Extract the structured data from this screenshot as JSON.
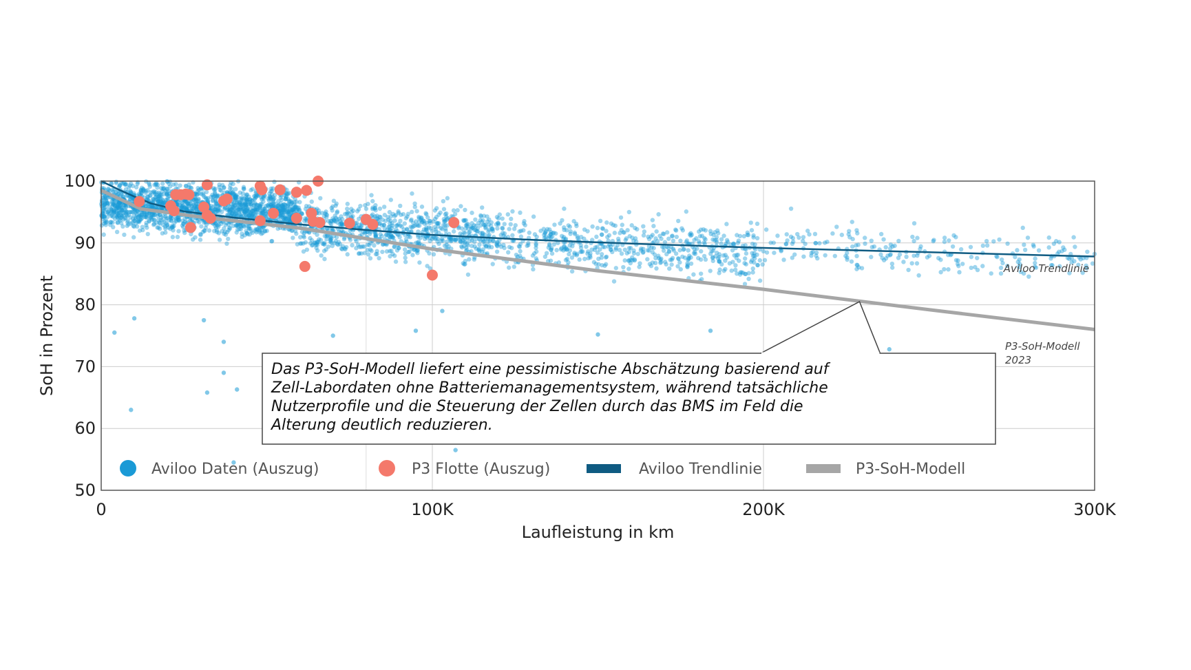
{
  "chart_data": {
    "type": "scatter",
    "xlabel": "Laufleistung in km",
    "ylabel": "SoH in Prozent",
    "xlim": [
      0,
      300000
    ],
    "ylim": [
      50,
      100
    ],
    "x_ticks": [
      0,
      100000,
      200000,
      300000
    ],
    "x_tick_labels": [
      "0",
      "100K",
      "200K",
      "300K"
    ],
    "y_ticks": [
      50,
      60,
      70,
      80,
      90,
      100
    ],
    "y_tick_labels": [
      "50",
      "60",
      "70",
      "80",
      "90",
      "100"
    ],
    "grid": true,
    "legend_position": "bottom-inside",
    "legend": [
      {
        "label": "Aviloo Daten (Auszug)",
        "marker": "circle",
        "color": "#1a9ad6"
      },
      {
        "label": "P3 Flotte (Auszug)",
        "marker": "circle",
        "color": "#f4796b"
      },
      {
        "label": "Aviloo Trendlinie",
        "marker": "bar",
        "color": "#0f5b82"
      },
      {
        "label": "P3-SoH-Modell",
        "marker": "bar",
        "color": "#a6a6a6"
      }
    ],
    "series": [
      {
        "name": "Aviloo Daten (Auszug)",
        "kind": "scatter",
        "color": "#1a9ad6",
        "density_regions": [
          {
            "x_range": [
              0,
              60000
            ],
            "y_center": 95.5,
            "y_spread": 3.0,
            "approx_points": 1700
          },
          {
            "x_range": [
              60000,
              120000
            ],
            "y_center": 92.0,
            "y_spread": 3.5,
            "approx_points": 800
          },
          {
            "x_range": [
              120000,
              200000
            ],
            "y_center": 89.5,
            "y_spread": 3.5,
            "approx_points": 550
          },
          {
            "x_range": [
              200000,
              300000
            ],
            "y_center": 88.5,
            "y_spread": 3.0,
            "approx_points": 220
          }
        ],
        "outliers": [
          {
            "x": 4000,
            "y": 75.5
          },
          {
            "x": 9000,
            "y": 63
          },
          {
            "x": 10000,
            "y": 77.8
          },
          {
            "x": 31000,
            "y": 77.5
          },
          {
            "x": 37000,
            "y": 74
          },
          {
            "x": 37000,
            "y": 69
          },
          {
            "x": 32000,
            "y": 65.8
          },
          {
            "x": 41000,
            "y": 66.3
          },
          {
            "x": 40000,
            "y": 54.5
          },
          {
            "x": 107000,
            "y": 56.5
          },
          {
            "x": 70000,
            "y": 75
          },
          {
            "x": 95000,
            "y": 75.8
          },
          {
            "x": 150000,
            "y": 75.2
          },
          {
            "x": 184000,
            "y": 75.8
          },
          {
            "x": 238000,
            "y": 72.8
          },
          {
            "x": 247000,
            "y": 70.5
          },
          {
            "x": 103000,
            "y": 79
          }
        ]
      },
      {
        "name": "P3 Flotte (Auszug)",
        "kind": "scatter",
        "color": "#f4796b",
        "points": [
          {
            "x": 11500,
            "y": 96.7
          },
          {
            "x": 21000,
            "y": 96
          },
          {
            "x": 22000,
            "y": 95.2
          },
          {
            "x": 22500,
            "y": 97.8
          },
          {
            "x": 24000,
            "y": 97.8
          },
          {
            "x": 25500,
            "y": 97.9
          },
          {
            "x": 26500,
            "y": 97.8
          },
          {
            "x": 27000,
            "y": 92.5
          },
          {
            "x": 31000,
            "y": 95.8
          },
          {
            "x": 32000,
            "y": 99.4
          },
          {
            "x": 32000,
            "y": 94.5
          },
          {
            "x": 33000,
            "y": 94
          },
          {
            "x": 37000,
            "y": 96.8
          },
          {
            "x": 38000,
            "y": 97.1
          },
          {
            "x": 48000,
            "y": 93.6
          },
          {
            "x": 48000,
            "y": 99.2
          },
          {
            "x": 48500,
            "y": 98.6
          },
          {
            "x": 52000,
            "y": 94.8
          },
          {
            "x": 54000,
            "y": 98.6
          },
          {
            "x": 59000,
            "y": 98.2
          },
          {
            "x": 59000,
            "y": 94
          },
          {
            "x": 61500,
            "y": 86.2
          },
          {
            "x": 62000,
            "y": 98.5
          },
          {
            "x": 63500,
            "y": 94.8
          },
          {
            "x": 64000,
            "y": 93.5
          },
          {
            "x": 65500,
            "y": 100
          },
          {
            "x": 66000,
            "y": 93.3
          },
          {
            "x": 75000,
            "y": 93.2
          },
          {
            "x": 80000,
            "y": 93.8
          },
          {
            "x": 82000,
            "y": 93
          },
          {
            "x": 100000,
            "y": 84.8
          },
          {
            "x": 106500,
            "y": 93.3
          }
        ]
      },
      {
        "name": "Aviloo Trendlinie",
        "kind": "line",
        "color": "#0f5b82",
        "x": [
          0,
          5000,
          10000,
          15000,
          25000,
          40000,
          60000,
          80000,
          100000,
          130000,
          160000,
          200000,
          250000,
          300000
        ],
        "y": [
          100,
          98.7,
          97.5,
          96.4,
          95.1,
          94.1,
          93.0,
          92.1,
          91.3,
          90.5,
          89.9,
          89.2,
          88.5,
          87.8
        ]
      },
      {
        "name": "P3-SoH-Modell",
        "kind": "line",
        "color": "#a6a6a6",
        "x": [
          0,
          12000,
          30000,
          60000,
          100000,
          150000,
          200000,
          250000,
          300000
        ],
        "y": [
          98.5,
          95.5,
          94.2,
          92.4,
          89.0,
          85.5,
          82.5,
          79.2,
          76.0
        ]
      }
    ],
    "annotations": [
      {
        "text_lines": [
          "Das P3-SoH-Modell liefert eine pessimistische Abschätzung basierend auf",
          "Zell-Labordaten ohne Batteriemanagementsystem, während tatsächliche",
          "Nutzerprofile und die Steuerung der Zellen durch das BMS im Feld die",
          "Alterung deutlich reduzieren."
        ],
        "points_to": {
          "x": 229000,
          "y": 80.5
        }
      }
    ],
    "series_labels": {
      "trend": [
        "Aviloo Trendlinie"
      ],
      "model": [
        "P3-SoH-Modell",
        "2023"
      ]
    }
  }
}
